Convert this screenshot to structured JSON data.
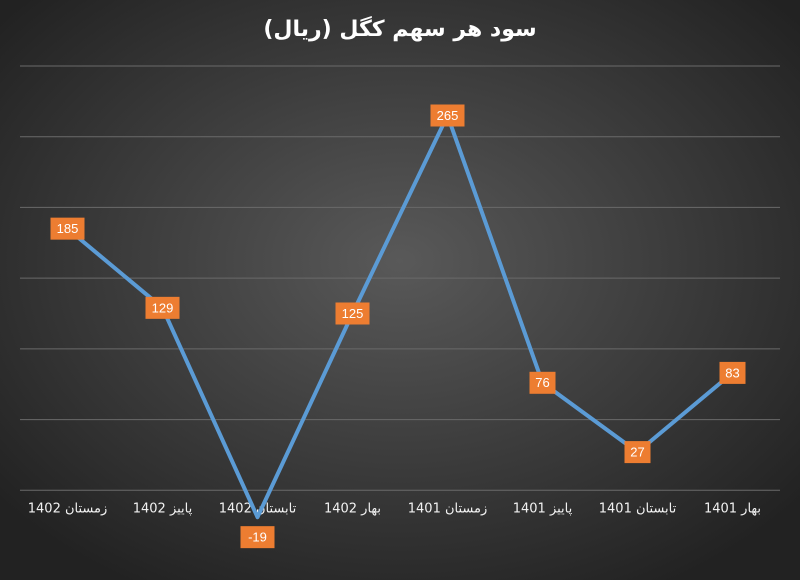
{
  "chart_data": {
    "type": "line",
    "title": "سود هر سهم کگل (ریال)",
    "categories": [
      "زمستان 1402",
      "پاییز 1402",
      "تابستان 1402",
      "بهار 1402",
      "زمستان 1401",
      "پاییز 1401",
      "تابستان 1401",
      "بهار 1401"
    ],
    "series": [
      {
        "name": "سود هر سهم",
        "color": "#5b9bd5",
        "values": [
          185,
          129,
          -19,
          125,
          265,
          76,
          27,
          83
        ]
      }
    ],
    "label_color": "#ed7d31",
    "ylim": [
      -50,
      300
    ],
    "yticks": [
      0,
      50,
      100,
      150,
      200,
      250,
      300
    ],
    "grid": true
  }
}
